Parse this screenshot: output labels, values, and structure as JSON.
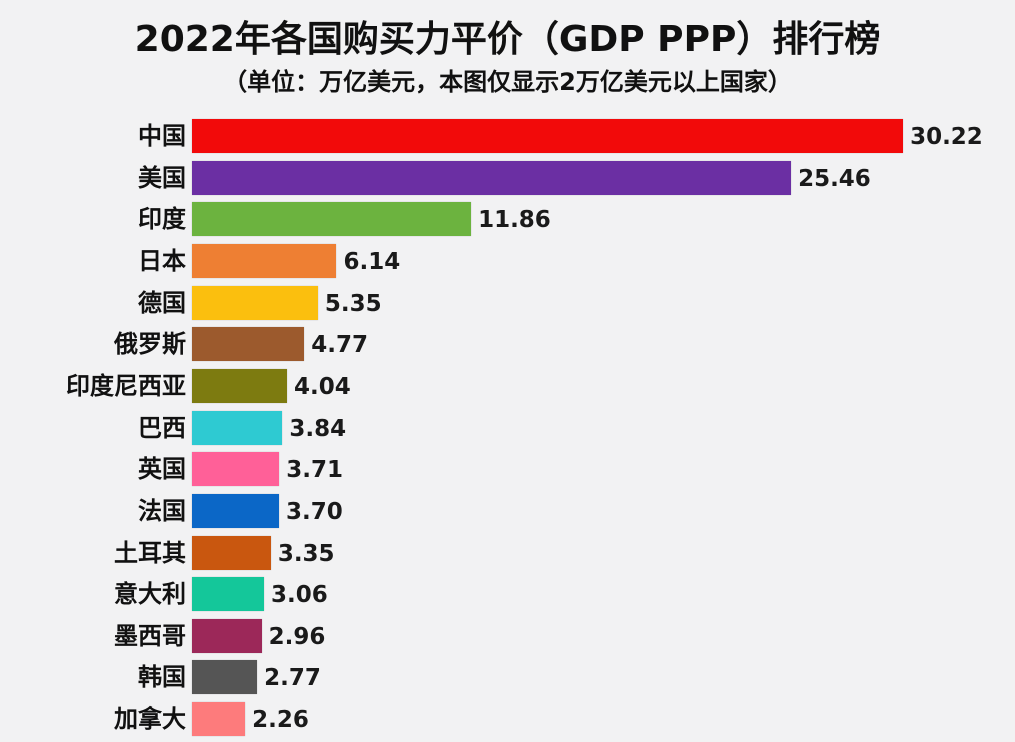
{
  "chart_data": {
    "type": "bar",
    "orientation": "horizontal",
    "title": "2022年各国购买力平价（GDP PPP）排行榜",
    "subtitle": "（单位：万亿美元，本图仅显示2万亿美元以上国家）",
    "xlabel": "",
    "ylabel": "",
    "unit": "万亿美元",
    "grid": false,
    "legend": null,
    "categories": [
      "中国",
      "美国",
      "印度",
      "日本",
      "德国",
      "俄罗斯",
      "印度尼西亚",
      "巴西",
      "英国",
      "法国",
      "土耳其",
      "意大利",
      "墨西哥",
      "韩国",
      "加拿大"
    ],
    "values": [
      30.22,
      25.46,
      11.86,
      6.14,
      5.35,
      4.77,
      4.04,
      3.84,
      3.71,
      3.7,
      3.35,
      3.06,
      2.96,
      2.77,
      2.26
    ],
    "value_labels": [
      "30.22",
      "25.46",
      "11.86",
      "6.14",
      "5.35",
      "4.77",
      "4.04",
      "3.84",
      "3.71",
      "3.70",
      "3.35",
      "3.06",
      "2.96",
      "2.77",
      "2.26"
    ],
    "colors": [
      "#f20a0a",
      "#6b2fa3",
      "#6cb33f",
      "#ee7f33",
      "#fbbf0e",
      "#9c5a2d",
      "#7d7b10",
      "#2ecad2",
      "#ff6098",
      "#0b67c7",
      "#c9570f",
      "#14c79a",
      "#9c2859",
      "#555555",
      "#fd7b7c"
    ]
  }
}
